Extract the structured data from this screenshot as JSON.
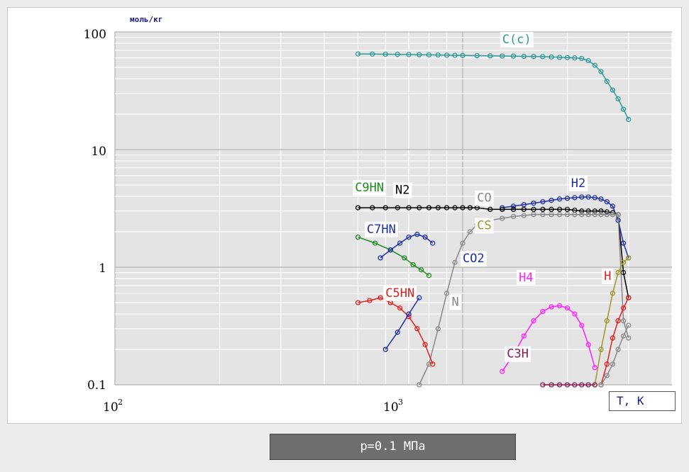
{
  "chart_data": {
    "type": "scatter",
    "title": "",
    "ylabel": "моль/кг",
    "xlabel": "T, K",
    "xscale": "log",
    "yscale": "log",
    "xlim": [
      100,
      4000
    ],
    "ylim": [
      0.1,
      100
    ],
    "grid": true,
    "x_ticks": [
      {
        "base": "10",
        "exp": "2"
      },
      {
        "base": "10",
        "exp": "3"
      }
    ],
    "y_ticks": [
      "100",
      "10",
      "1",
      "0.1"
    ],
    "pressure_label": "p=0.1 МПа",
    "series": [
      {
        "name": "C(c)",
        "color": "#2f9a9a",
        "x": [
          500,
          550,
          600,
          650,
          700,
          750,
          800,
          850,
          900,
          950,
          1000,
          1100,
          1200,
          1300,
          1400,
          1500,
          1600,
          1700,
          1800,
          1900,
          2000,
          2100,
          2200,
          2300,
          2400,
          2500,
          2600,
          2700,
          2800,
          2900,
          3000
        ],
        "y": [
          65,
          64.8,
          64.6,
          64.4,
          64.2,
          64,
          63.8,
          63.6,
          63.4,
          63.2,
          63,
          62.8,
          62.6,
          62.4,
          62.2,
          62,
          61.8,
          61.6,
          61.2,
          60.8,
          60.4,
          60,
          59.5,
          57,
          52,
          46,
          38,
          32,
          27,
          22,
          18
        ],
        "label": {
          "text": "C(c)",
          "x": 1300,
          "y": 80
        }
      },
      {
        "name": "H2",
        "color": "#1f2fa3",
        "x": [
          1300,
          1400,
          1500,
          1600,
          1700,
          1800,
          1900,
          2000,
          2100,
          2200,
          2300,
          2400,
          2500,
          2600,
          2700,
          2800,
          2900,
          3000
        ],
        "y": [
          3.2,
          3.3,
          3.4,
          3.5,
          3.6,
          3.7,
          3.8,
          3.85,
          3.9,
          3.95,
          3.95,
          3.9,
          3.8,
          3.6,
          3.3,
          2.5,
          1.6,
          1.2
        ],
        "label": {
          "text": "H2",
          "x": 2050,
          "y": 4.8
        }
      },
      {
        "name": "N2",
        "color": "#000000",
        "x": [
          500,
          550,
          600,
          650,
          700,
          750,
          800,
          850,
          900,
          950,
          1000,
          1050,
          1100,
          1200,
          1300,
          1400,
          1500,
          1600,
          1700,
          1800,
          1900,
          2000,
          2100,
          2200,
          2300,
          2400,
          2500,
          2600,
          2700,
          2800,
          2900,
          3000
        ],
        "y": [
          3.2,
          3.2,
          3.2,
          3.2,
          3.2,
          3.2,
          3.2,
          3.2,
          3.2,
          3.2,
          3.2,
          3.2,
          3.2,
          3.1,
          3.1,
          3.1,
          3.1,
          3.1,
          3.1,
          3.1,
          3.1,
          3.1,
          3.05,
          3,
          3,
          3,
          3,
          2.95,
          2.9,
          2.8,
          0.9,
          0.55
        ],
        "label": {
          "text": "N2",
          "x": 640,
          "y": 4.2
        }
      },
      {
        "name": "CO",
        "color": "#888888",
        "x": [
          750,
          800,
          850,
          900,
          950,
          1000,
          1050,
          1100,
          1200,
          1300,
          1400,
          1500,
          1600,
          1700,
          1800,
          1900,
          2000,
          2100,
          2200,
          2300,
          2400,
          2500,
          2600,
          2700,
          2800,
          2900,
          3000
        ],
        "y": [
          0.1,
          0.15,
          0.3,
          0.6,
          1.1,
          1.6,
          2,
          2.3,
          2.5,
          2.6,
          2.7,
          2.75,
          2.8,
          2.8,
          2.8,
          2.8,
          2.8,
          2.8,
          2.8,
          2.8,
          2.8,
          2.8,
          2.8,
          2.8,
          2.8,
          0.35,
          0.25
        ],
        "label": {
          "text": "CO",
          "x": 1100,
          "y": 3.6
        }
      },
      {
        "name": "CS",
        "color": "#a09628",
        "x": [
          2400,
          2500,
          2600,
          2700,
          2800,
          2900,
          3000
        ],
        "y": [
          0.1,
          0.2,
          0.35,
          0.6,
          0.9,
          1.1,
          1.2
        ],
        "label": {
          "text": "CS",
          "x": 1100,
          "y": 2.1
        }
      },
      {
        "name": "C9HN",
        "color": "#1f8a1f",
        "x": [
          500,
          560,
          620,
          680,
          720,
          760,
          800
        ],
        "y": [
          1.8,
          1.6,
          1.4,
          1.2,
          1.05,
          0.95,
          0.85
        ],
        "label": {
          "text": "C9HN",
          "x": 490,
          "y": 4.4
        }
      },
      {
        "name": "C7HN",
        "color": "#1f2fa3",
        "x": [
          580,
          620,
          660,
          700,
          740,
          780,
          820
        ],
        "y": [
          1.2,
          1.4,
          1.6,
          1.8,
          1.9,
          1.8,
          1.6
        ],
        "label": {
          "text": "C7HN",
          "x": 530,
          "y": 1.95
        }
      },
      {
        "name": "C5HN",
        "color": "#e0201e",
        "x": [
          500,
          540,
          580,
          620,
          660,
          700,
          740,
          780,
          820
        ],
        "y": [
          0.5,
          0.52,
          0.55,
          0.5,
          0.45,
          0.38,
          0.3,
          0.22,
          0.15
        ],
        "label": {
          "text": "C5HN",
          "x": 600,
          "y": 0.56
        }
      },
      {
        "name": "CO2",
        "color": "#1f2fa3",
        "x": [
          600,
          650,
          700,
          750
        ],
        "y": [
          0.2,
          0.28,
          0.4,
          0.55
        ],
        "label": {
          "text": "CO2",
          "x": 1000,
          "y": 1.1
        }
      },
      {
        "name": "C2H4",
        "color": "#ff20ff",
        "x": [
          1300,
          1400,
          1500,
          1600,
          1700,
          1800,
          1900,
          2000,
          2100,
          2200,
          2300,
          2400
        ],
        "y": [
          0.13,
          0.18,
          0.26,
          0.35,
          0.42,
          0.46,
          0.47,
          0.45,
          0.4,
          0.32,
          0.22,
          0.14
        ],
        "label": {
          "text": "H4",
          "x": 1450,
          "y": 0.76
        }
      },
      {
        "name": "C3H",
        "color": "#8a1a50",
        "x": [
          1700,
          1800,
          1900,
          2000,
          2100,
          2200,
          2300,
          2400
        ],
        "y": [
          0.1,
          0.1,
          0.1,
          0.1,
          0.1,
          0.1,
          0.1,
          0.1
        ],
        "label": {
          "text": "C3H",
          "x": 1340,
          "y": 0.17
        }
      },
      {
        "name": "H",
        "color": "#e0201e",
        "x": [
          2500,
          2600,
          2700,
          2800,
          2900,
          3000
        ],
        "y": [
          0.1,
          0.15,
          0.25,
          0.35,
          0.45,
          0.55
        ],
        "label": {
          "text": "H",
          "x": 2550,
          "y": 0.78
        }
      },
      {
        "name": "N",
        "color": "#888888",
        "x": [
          2500,
          2600,
          2700,
          2800,
          2900,
          3000
        ],
        "y": [
          0.1,
          0.12,
          0.15,
          0.2,
          0.26,
          0.32
        ],
        "label": {
          "text": "N",
          "x": 930,
          "y": 0.47
        }
      }
    ]
  }
}
